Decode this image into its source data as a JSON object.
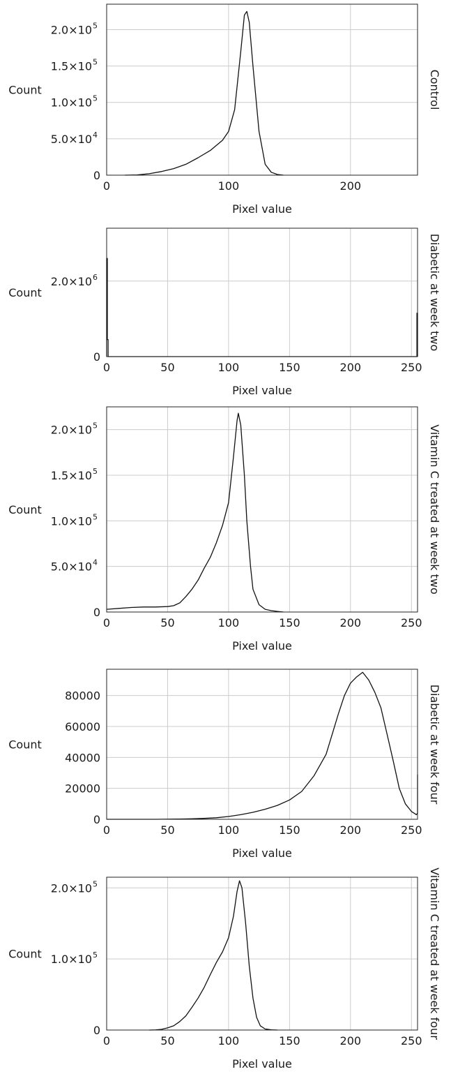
{
  "chart_data": [
    {
      "type": "line",
      "side_label": "Control",
      "xlabel": "Pixel value",
      "ylabel": "Count",
      "xlim": [
        0,
        255
      ],
      "ylim": [
        0,
        235000
      ],
      "grid": true,
      "xticks": [
        {
          "v": 0,
          "t": "0"
        },
        {
          "v": 100,
          "t": "100"
        },
        {
          "v": 200,
          "t": "200"
        }
      ],
      "yticks": [
        {
          "v": 0,
          "t": "0"
        },
        {
          "v": 50000,
          "t": "5.0×10",
          "e": "4"
        },
        {
          "v": 100000,
          "t": "1.0×10",
          "e": "5"
        },
        {
          "v": 150000,
          "t": "1.5×10",
          "e": "5"
        },
        {
          "v": 200000,
          "t": "2.0×10",
          "e": "5"
        }
      ],
      "series": [
        {
          "x": [
            15,
            25,
            35,
            45,
            55,
            65,
            75,
            85,
            95,
            100,
            105,
            110,
            113,
            115,
            117,
            120,
            125,
            130,
            135,
            140,
            145
          ],
          "y": [
            0,
            300,
            2000,
            5000,
            9000,
            15000,
            24000,
            34000,
            48000,
            60000,
            90000,
            170000,
            220000,
            225000,
            210000,
            150000,
            60000,
            15000,
            4000,
            1000,
            0
          ]
        }
      ]
    },
    {
      "type": "line",
      "side_label": "Diabetic at week two",
      "xlabel": "Pixel value",
      "ylabel": "Count",
      "xlim": [
        0,
        255
      ],
      "ylim": [
        0,
        3400000
      ],
      "grid": true,
      "xticks": [
        {
          "v": 0,
          "t": "0"
        },
        {
          "v": 50,
          "t": "50"
        },
        {
          "v": 100,
          "t": "100"
        },
        {
          "v": 150,
          "t": "150"
        },
        {
          "v": 200,
          "t": "200"
        },
        {
          "v": 250,
          "t": "250"
        }
      ],
      "yticks": [
        {
          "v": 0,
          "t": "0"
        },
        {
          "v": 2000000,
          "t": "2.0×10",
          "e": "6"
        }
      ],
      "series": [
        {
          "x": [
            0,
            0,
            0.6,
            0.6,
            1.2,
            1.2,
            2,
            254,
            254.5,
            254.5,
            255,
            255
          ],
          "y": [
            0,
            2600000,
            2600000,
            450000,
            450000,
            0,
            0,
            0,
            0,
            1150000,
            1150000,
            0
          ]
        }
      ]
    },
    {
      "type": "line",
      "side_label": "Vitamin C treated at week two",
      "xlabel": "Pixel value",
      "ylabel": "Count",
      "xlim": [
        0,
        255
      ],
      "ylim": [
        0,
        225000
      ],
      "grid": true,
      "xticks": [
        {
          "v": 0,
          "t": "0"
        },
        {
          "v": 50,
          "t": "50"
        },
        {
          "v": 100,
          "t": "100"
        },
        {
          "v": 150,
          "t": "150"
        },
        {
          "v": 200,
          "t": "200"
        },
        {
          "v": 250,
          "t": "250"
        }
      ],
      "yticks": [
        {
          "v": 0,
          "t": "0"
        },
        {
          "v": 50000,
          "t": "5.0×10",
          "e": "4"
        },
        {
          "v": 100000,
          "t": "1.0×10",
          "e": "5"
        },
        {
          "v": 150000,
          "t": "1.5×10",
          "e": "5"
        },
        {
          "v": 200000,
          "t": "2.0×10",
          "e": "5"
        }
      ],
      "series": [
        {
          "x": [
            0,
            10,
            20,
            30,
            40,
            50,
            55,
            60,
            65,
            70,
            75,
            80,
            85,
            90,
            95,
            100,
            104,
            107,
            108,
            110,
            113,
            115,
            118,
            120,
            125,
            130,
            135,
            140,
            145
          ],
          "y": [
            3000,
            4000,
            5000,
            5500,
            5500,
            6000,
            7000,
            10000,
            17000,
            25000,
            35000,
            48000,
            60000,
            76000,
            95000,
            120000,
            170000,
            210000,
            218000,
            205000,
            150000,
            100000,
            50000,
            25000,
            8000,
            3000,
            1500,
            700,
            0
          ]
        }
      ]
    },
    {
      "type": "line",
      "side_label": "Diabetic at week four",
      "xlabel": "Pixel value",
      "ylabel": "Count",
      "xlim": [
        0,
        255
      ],
      "ylim": [
        0,
        97000
      ],
      "grid": true,
      "xticks": [
        {
          "v": 0,
          "t": "0"
        },
        {
          "v": 50,
          "t": "50"
        },
        {
          "v": 100,
          "t": "100"
        },
        {
          "v": 150,
          "t": "150"
        },
        {
          "v": 200,
          "t": "200"
        },
        {
          "v": 250,
          "t": "250"
        }
      ],
      "yticks": [
        {
          "v": 0,
          "t": "0"
        },
        {
          "v": 20000,
          "t": "20000"
        },
        {
          "v": 40000,
          "t": "40000"
        },
        {
          "v": 60000,
          "t": "60000"
        },
        {
          "v": 80000,
          "t": "80000"
        }
      ],
      "series": [
        {
          "x": [
            0,
            20,
            40,
            60,
            70,
            80,
            90,
            100,
            110,
            120,
            130,
            140,
            150,
            160,
            170,
            180,
            185,
            190,
            195,
            200,
            205,
            210,
            215,
            220,
            225,
            230,
            235,
            240,
            245,
            250,
            252,
            254,
            255,
            255
          ],
          "y": [
            0,
            0,
            0,
            200,
            300,
            600,
            1000,
            1800,
            3000,
            4500,
            6500,
            9000,
            12500,
            18000,
            28000,
            42000,
            55000,
            68000,
            80000,
            88000,
            92000,
            95000,
            90000,
            82000,
            72000,
            55000,
            38000,
            20000,
            10000,
            5000,
            4000,
            3000,
            4000,
            29000
          ]
        }
      ]
    },
    {
      "type": "line",
      "side_label": "Vitamin C treated at week four",
      "xlabel": "Pixel value",
      "ylabel": "Count",
      "xlim": [
        0,
        255
      ],
      "ylim": [
        0,
        215000
      ],
      "grid": true,
      "xticks": [
        {
          "v": 0,
          "t": "0"
        },
        {
          "v": 50,
          "t": "50"
        },
        {
          "v": 100,
          "t": "100"
        },
        {
          "v": 150,
          "t": "150"
        },
        {
          "v": 200,
          "t": "200"
        },
        {
          "v": 250,
          "t": "250"
        }
      ],
      "yticks": [
        {
          "v": 0,
          "t": "0"
        },
        {
          "v": 100000,
          "t": "1.0×10",
          "e": "5"
        },
        {
          "v": 200000,
          "t": "2.0×10",
          "e": "5"
        }
      ],
      "series": [
        {
          "x": [
            35,
            40,
            45,
            50,
            55,
            60,
            65,
            70,
            75,
            80,
            85,
            90,
            95,
            100,
            104,
            107,
            109,
            111,
            114,
            117,
            120,
            123,
            126,
            130,
            135,
            140
          ],
          "y": [
            0,
            200,
            1000,
            3000,
            6000,
            12000,
            20000,
            32000,
            45000,
            60000,
            78000,
            95000,
            110000,
            130000,
            160000,
            195000,
            210000,
            200000,
            150000,
            90000,
            45000,
            18000,
            6000,
            1500,
            300,
            0
          ]
        }
      ]
    }
  ]
}
